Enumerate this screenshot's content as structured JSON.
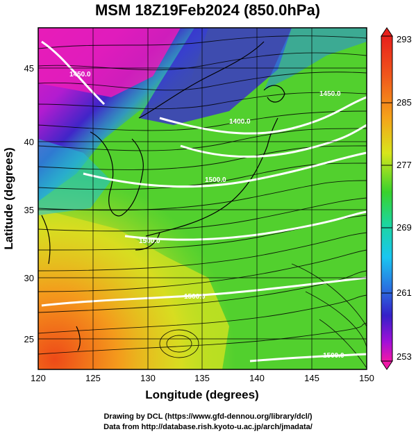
{
  "title": "MSM 18Z19Feb2024 (850.0hPa)",
  "xlabel": "Longitude (degrees)",
  "ylabel": "Latitude  (degrees)",
  "x_ticks": [
    "120",
    "125",
    "130",
    "135",
    "140",
    "145",
    "150"
  ],
  "y_ticks": [
    "25",
    "30",
    "35",
    "40",
    "45"
  ],
  "colorbar_ticks": [
    "293",
    "285",
    "277",
    "269",
    "261",
    "253"
  ],
  "contour_labels": [
    "1450.0",
    "1400.0",
    "1450.0",
    "1500.0",
    "1500.0",
    "1500.0",
    "1500.0",
    "1550.0",
    "1500.0",
    "1500.0"
  ],
  "credits": [
    "Drawing by DCL (https://www.gfd-dennou.org/library/dcl/)",
    "Data from http://database.rish.kyoto-u.ac.jp/arch/jmadata/"
  ],
  "map": {
    "lon_range": [
      120,
      150
    ],
    "lat_range": [
      22.5,
      47.5
    ],
    "grid": true,
    "field": "temperature (K) with wind streamlines and geopotential height contours",
    "colorbar_range": [
      253,
      293
    ]
  }
}
